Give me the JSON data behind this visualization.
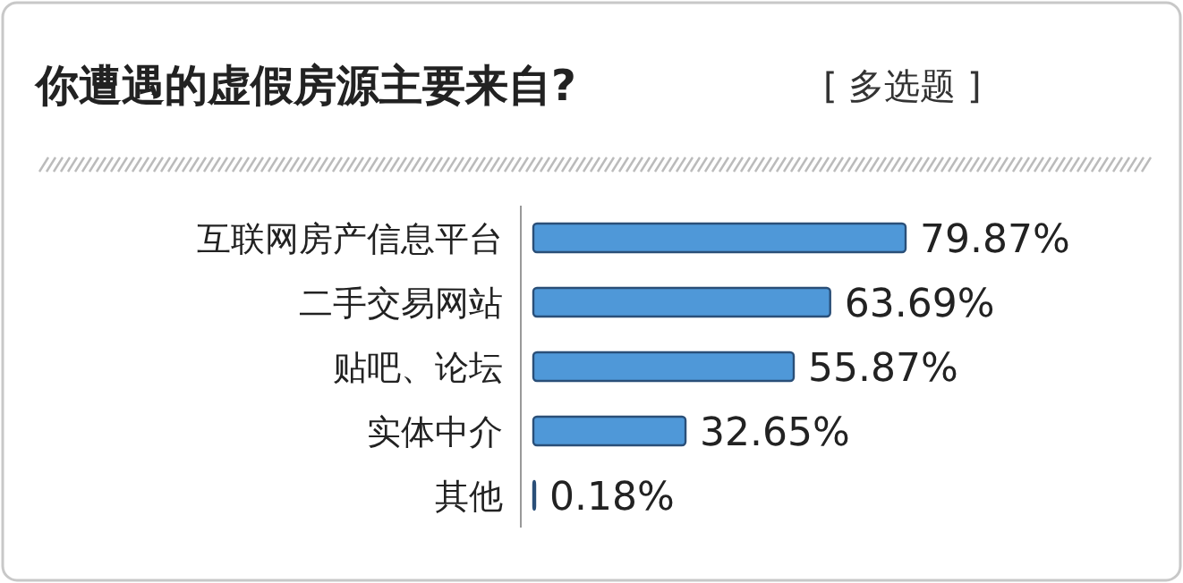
{
  "chart_data": {
    "type": "bar",
    "orientation": "horizontal",
    "title": "你遭遇的虚假房源主要来自?",
    "subtitle": "[ 多选题 ]",
    "categories": [
      "互联网房产信息平台",
      "二手交易网站",
      "贴吧、论坛",
      "实体中介",
      "其他"
    ],
    "values": [
      79.87,
      63.69,
      55.87,
      32.65,
      0.18
    ],
    "value_labels": [
      "79.87%",
      "63.69%",
      "55.87%",
      "32.65%",
      "0.18%"
    ],
    "color": "#4f98d8"
  }
}
